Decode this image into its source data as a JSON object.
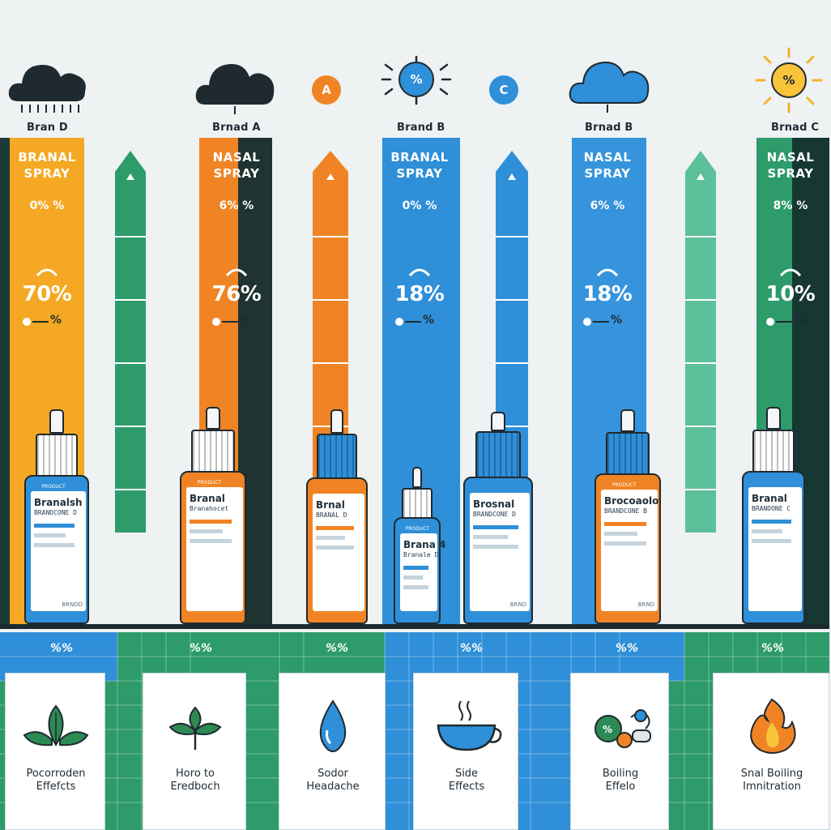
{
  "header": {
    "brand_labels": [
      "Bran D",
      "Brnad A",
      "Brand B",
      "Brnad B",
      "Brnad C"
    ],
    "badge_a": "A",
    "badge_c": "C",
    "sun_pct_blue": "%",
    "sun_pct_orange": "%",
    "icons": [
      "rain-cloud-icon",
      "cloud-icon",
      "badge-a",
      "sun-percent-icon",
      "badge-c",
      "blue-cloud-icon",
      "orange-sun-percent-icon"
    ]
  },
  "columns": [
    {
      "name": "col-brand-d",
      "color": "#f5a823",
      "dark": "#1b3b3a",
      "title1": "BRANAL",
      "title2": "SPRAY",
      "small_pct": "0% %",
      "big_pct": "70%",
      "dot_pct": "%"
    },
    {
      "name": "col-brand-a",
      "color": "#f08424",
      "dark": "#1f3330",
      "title1": "NASAL",
      "title2": "SPRAY",
      "small_pct": "6% %",
      "big_pct": "76%",
      "dot_pct": "%"
    },
    {
      "name": "col-brand-b",
      "color": "#2f8fd8",
      "dark": "#2f8fd8",
      "title1": "BRANAL",
      "title2": "SPRAY",
      "small_pct": "0% %",
      "big_pct": "18%",
      "dot_pct": "%"
    },
    {
      "name": "col-brand-b2",
      "color": "#3694dc",
      "dark": "#3694dc",
      "title1": "NASAL",
      "title2": "SPRAY",
      "small_pct": "6% %",
      "big_pct": "18%",
      "dot_pct": "%"
    },
    {
      "name": "col-brand-c",
      "color": "#2d9b6a",
      "dark": "#173733",
      "title1": "NASAL",
      "title2": "SPRAY",
      "small_pct": "8% %",
      "big_pct": "10%",
      "dot_pct": "%"
    }
  ],
  "bottles": [
    {
      "label1": "Branalsh",
      "label2": "BRANDCONE D",
      "tab": "PRODUCT",
      "foot": "BRNDD",
      "accent": "#2f8fd8"
    },
    {
      "label1": "Branal",
      "label2": "Branahocet",
      "tab": "PRODUCT",
      "foot": "",
      "accent": "#f08424"
    },
    {
      "label1": "Brnal",
      "label2": "BRANAL D",
      "tab": "",
      "foot": "",
      "accent": "#f08424"
    },
    {
      "label1": "Brana 4",
      "label2": "Branale D",
      "tab": "PRODUCT",
      "foot": "",
      "accent": "#2f8fd8"
    },
    {
      "label1": "Brosnal",
      "label2": "BRANDCONE D",
      "tab": "",
      "foot": "BRND",
      "accent": "#2f8fd8"
    },
    {
      "label1": "Brocoaolo",
      "label2": "BRANDCONE B",
      "tab": "PRODUCT",
      "foot": "BRND",
      "accent": "#f08424"
    },
    {
      "label1": "Branal",
      "label2": "BRANDONE C",
      "tab": "",
      "foot": "",
      "accent": "#2f8fd8"
    }
  ],
  "footer": {
    "band_pct": "%%",
    "cards": [
      {
        "name": "card-prevention-effects",
        "line1": "Pocorroden",
        "line2": "Effefcts",
        "icon": "leaves-icon"
      },
      {
        "name": "card-how-to-headache",
        "line1": "Horo to",
        "line2": "Eredboch",
        "icon": "plant-icon"
      },
      {
        "name": "card-sodor-headache",
        "line1": "Sodor",
        "line2": "Headache",
        "icon": "water-drop-icon"
      },
      {
        "name": "card-side-effects",
        "line1": "Side",
        "line2": "Effects",
        "icon": "steaming-bowl-icon"
      },
      {
        "name": "card-boiling-effects",
        "line1": "Boiling",
        "line2": "Effelo",
        "icon": "pills-icon"
      },
      {
        "name": "card-snal-boiling-imitation",
        "line1": "Snal Boiling",
        "line2": "Imnitration",
        "icon": "flame-icon"
      }
    ]
  }
}
